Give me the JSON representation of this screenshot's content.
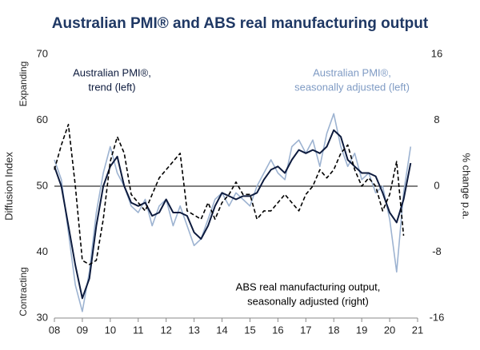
{
  "chart_data": {
    "type": "line",
    "title": "Australian PMI® and ABS real manufacturing output",
    "y_label": "Diffusion Index",
    "y2_label": "% change p.a.",
    "y_upper_note": "Expanding",
    "y_lower_note": "Contracting",
    "annotations": [
      {
        "lines": [
          "Australian PMI®,",
          "trend (left)"
        ]
      },
      {
        "lines": [
          "Australian PMI®,",
          "seasonally adjusted (left)"
        ]
      },
      {
        "lines": [
          "ABS real manufacturing output,",
          "seasonally adjusted (right)"
        ]
      }
    ],
    "x": [
      2008.0,
      2008.25,
      2008.5,
      2008.75,
      2009.0,
      2009.25,
      2009.5,
      2009.75,
      2010.0,
      2010.25,
      2010.5,
      2010.75,
      2011.0,
      2011.25,
      2011.5,
      2011.75,
      2012.0,
      2012.25,
      2012.5,
      2012.75,
      2013.0,
      2013.25,
      2013.5,
      2013.75,
      2014.0,
      2014.25,
      2014.5,
      2014.75,
      2015.0,
      2015.25,
      2015.5,
      2015.75,
      2016.0,
      2016.25,
      2016.5,
      2016.75,
      2017.0,
      2017.25,
      2017.5,
      2017.75,
      2018.0,
      2018.25,
      2018.5,
      2018.75,
      2019.0,
      2019.25,
      2019.5,
      2019.75,
      2020.0,
      2020.25,
      2020.5,
      2020.75
    ],
    "series": [
      {
        "name": "Australian PMI®, seasonally adjusted (left)",
        "color": "#9db3d1",
        "width": 1.6,
        "dash": false,
        "axis": "y",
        "values": [
          54,
          51,
          43,
          35,
          31,
          37,
          46,
          52,
          56,
          52,
          50,
          47,
          46,
          48,
          44,
          47,
          48,
          44,
          47,
          44,
          41,
          42,
          45,
          48,
          49,
          47,
          49,
          48,
          47,
          50,
          52,
          54,
          52,
          51,
          56,
          57,
          55,
          57,
          53,
          58,
          61,
          56,
          53,
          55,
          51,
          52,
          49,
          50,
          45,
          37,
          49,
          56
        ]
      },
      {
        "name": "Australian PMI®, trend (left)",
        "color": "#0d1b3e",
        "width": 2,
        "dash": false,
        "axis": "y",
        "values": [
          53,
          50,
          44,
          38,
          33,
          36,
          44,
          50,
          53,
          54.5,
          50,
          47.5,
          47,
          47.5,
          45.5,
          46,
          48,
          46,
          46,
          45.5,
          43,
          42,
          44,
          47,
          49,
          48.5,
          48,
          48.5,
          48.5,
          49,
          51,
          52.5,
          53,
          52,
          54,
          55.5,
          55,
          55.5,
          55,
          56,
          58.5,
          57.5,
          54,
          53,
          52,
          52,
          51.5,
          49,
          46,
          44.5,
          48,
          53.5
        ]
      },
      {
        "name": "ABS real manufacturing output, seasonally adjusted (right)",
        "color": "#000000",
        "width": 1.6,
        "dash": true,
        "axis": "y2",
        "values": [
          2,
          5,
          7.5,
          0,
          -9,
          -9.5,
          -9,
          -4,
          3,
          6,
          4,
          -1,
          -2,
          -3,
          -1,
          1,
          2,
          3,
          4,
          -3,
          -3.5,
          -4,
          -2,
          -4,
          -2,
          -1,
          0.5,
          -1,
          -1,
          -4,
          -3,
          -3,
          -2,
          -1,
          -2,
          -3,
          -1,
          0,
          2,
          1,
          2,
          4,
          5,
          2,
          0,
          1,
          0,
          -3,
          -1,
          3,
          -6,
          null
        ]
      }
    ],
    "xlim": [
      2008,
      2021
    ],
    "xticks": [
      {
        "value": 2008,
        "label": "08"
      },
      {
        "value": 2009,
        "label": "09"
      },
      {
        "value": 2010,
        "label": "10"
      },
      {
        "value": 2011,
        "label": "11"
      },
      {
        "value": 2012,
        "label": "12"
      },
      {
        "value": 2013,
        "label": "13"
      },
      {
        "value": 2014,
        "label": "14"
      },
      {
        "value": 2015,
        "label": "15"
      },
      {
        "value": 2016,
        "label": "16"
      },
      {
        "value": 2017,
        "label": "17"
      },
      {
        "value": 2018,
        "label": "18"
      },
      {
        "value": 2019,
        "label": "19"
      },
      {
        "value": 2020,
        "label": "20"
      },
      {
        "value": 2021,
        "label": "21"
      }
    ],
    "ylim": [
      30,
      70
    ],
    "yticks": [
      30,
      40,
      50,
      60,
      70
    ],
    "y2lim": [
      -16,
      16
    ],
    "y2ticks": [
      -16,
      -8,
      0,
      8,
      16
    ],
    "reference_line": 50
  }
}
